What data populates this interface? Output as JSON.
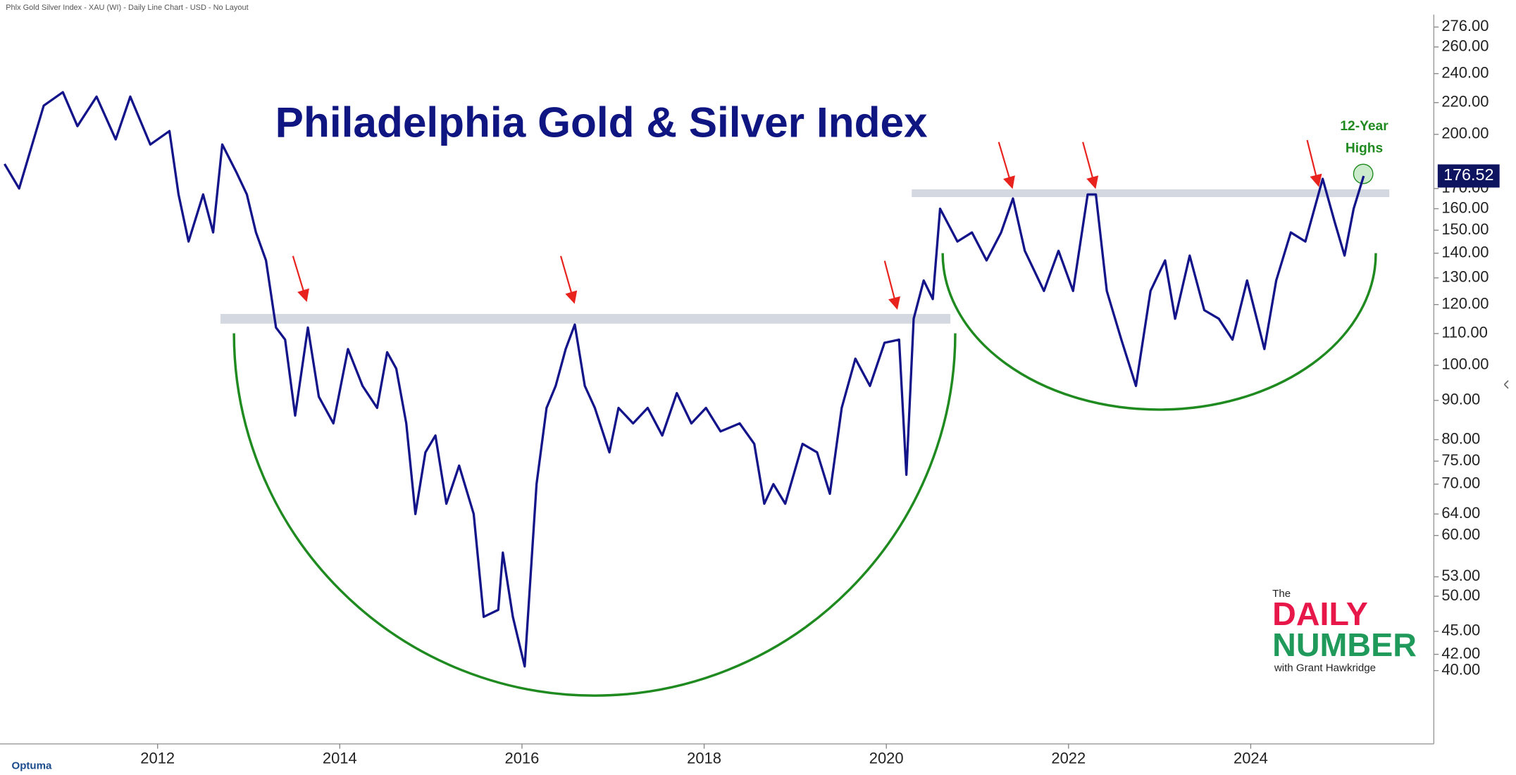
{
  "header": "Phlx Gold Silver Index - XAU (WI) - Daily Line Chart - USD - No Layout",
  "chart_data": {
    "type": "line",
    "title": "Philadelphia Gold & Silver Index",
    "annotation_lines": [
      "12-Year",
      "Highs"
    ],
    "color": "#13138a",
    "log_scale": true,
    "x": [
      2010.32,
      2010.48,
      2010.75,
      2010.96,
      2011.12,
      2011.33,
      2011.54,
      2011.7,
      2011.92,
      2012.13,
      2012.23,
      2012.34,
      2012.5,
      2012.61,
      2012.71,
      2012.87,
      2012.98,
      2013.08,
      2013.19,
      2013.3,
      2013.4,
      2013.51,
      2013.65,
      2013.77,
      2013.93,
      2014.09,
      2014.25,
      2014.41,
      2014.52,
      2014.62,
      2014.73,
      2014.83,
      2014.94,
      2015.05,
      2015.17,
      2015.31,
      2015.47,
      2015.58,
      2015.74,
      2015.79,
      2015.9,
      2016.03,
      2016.16,
      2016.27,
      2016.37,
      2016.48,
      2016.58,
      2016.69,
      2016.8,
      2016.96,
      2017.06,
      2017.22,
      2017.38,
      2017.54,
      2017.7,
      2017.86,
      2018.02,
      2018.18,
      2018.39,
      2018.55,
      2018.66,
      2018.76,
      2018.89,
      2019.08,
      2019.24,
      2019.38,
      2019.51,
      2019.66,
      2019.82,
      2019.98,
      2020.14,
      2020.22,
      2020.3,
      2020.41,
      2020.51,
      2020.59,
      2020.78,
      2020.94,
      2021.1,
      2021.26,
      2021.39,
      2021.52,
      2021.73,
      2021.89,
      2022.05,
      2022.21,
      2022.3,
      2022.42,
      2022.58,
      2022.74,
      2022.9,
      2023.06,
      2023.17,
      2023.33,
      2023.49,
      2023.65,
      2023.8,
      2023.96,
      2024.15,
      2024.28,
      2024.44,
      2024.6,
      2024.79,
      2024.92,
      2025.03,
      2025.13,
      2025.24
    ],
    "values": [
      183,
      170,
      218,
      227,
      205,
      224,
      197,
      224,
      194,
      202,
      167,
      145,
      167,
      149,
      194,
      178,
      167,
      149,
      137,
      112,
      108,
      86,
      112,
      91,
      84,
      105,
      94,
      88,
      104,
      99,
      84,
      64,
      77,
      81,
      66,
      74,
      64,
      47,
      48,
      57,
      47,
      40.5,
      70,
      88,
      94,
      105,
      113,
      94,
      88,
      77,
      88,
      84,
      88,
      81,
      92,
      84,
      88,
      82,
      84,
      79,
      66,
      70,
      66,
      79,
      77,
      68,
      88,
      102,
      94,
      107,
      108,
      72,
      115,
      129,
      122,
      160,
      145,
      149,
      137,
      149,
      165,
      141,
      125,
      141,
      125,
      167,
      167,
      125,
      108,
      94,
      125,
      137,
      115,
      139,
      118,
      115,
      108,
      129,
      105,
      129,
      149,
      145,
      175,
      154,
      139,
      160,
      176.52
    ],
    "last_price": {
      "value": 176.52,
      "label": "176.52"
    },
    "xlim": [
      2010.27,
      2026.01
    ],
    "xticks": [
      2012,
      2014,
      2016,
      2018,
      2020,
      2022,
      2024
    ],
    "ylim": [
      32.1,
      286.6
    ],
    "yticks": [
      {
        "value": 276,
        "label": "276.00"
      },
      {
        "value": 260,
        "label": "260.00"
      },
      {
        "value": 240,
        "label": "240.00"
      },
      {
        "value": 220,
        "label": "220.00"
      },
      {
        "value": 200,
        "label": "200.00"
      },
      {
        "value": 170,
        "label": "170.00"
      },
      {
        "value": 160,
        "label": "160.00"
      },
      {
        "value": 150,
        "label": "150.00"
      },
      {
        "value": 140,
        "label": "140.00"
      },
      {
        "value": 130,
        "label": "130.00"
      },
      {
        "value": 120,
        "label": "120.00"
      },
      {
        "value": 110,
        "label": "110.00"
      },
      {
        "value": 100,
        "label": "100.00"
      },
      {
        "value": 90,
        "label": "90.00"
      },
      {
        "value": 80,
        "label": "80.00"
      },
      {
        "value": 75,
        "label": "75.00"
      },
      {
        "value": 70,
        "label": "70.00"
      },
      {
        "value": 64,
        "label": "64.00"
      },
      {
        "value": 60,
        "label": "60.00"
      },
      {
        "value": 53,
        "label": "53.00"
      },
      {
        "value": 50,
        "label": "50.00"
      },
      {
        "value": 45,
        "label": "45.00"
      },
      {
        "value": 42,
        "label": "42.00"
      },
      {
        "value": 40,
        "label": "40.00"
      }
    ]
  },
  "logo": {
    "the": "The",
    "daily": "DAILY",
    "number": "NUMBER",
    "byline": "with Grant Hawkridge"
  },
  "brand": "Optuma"
}
